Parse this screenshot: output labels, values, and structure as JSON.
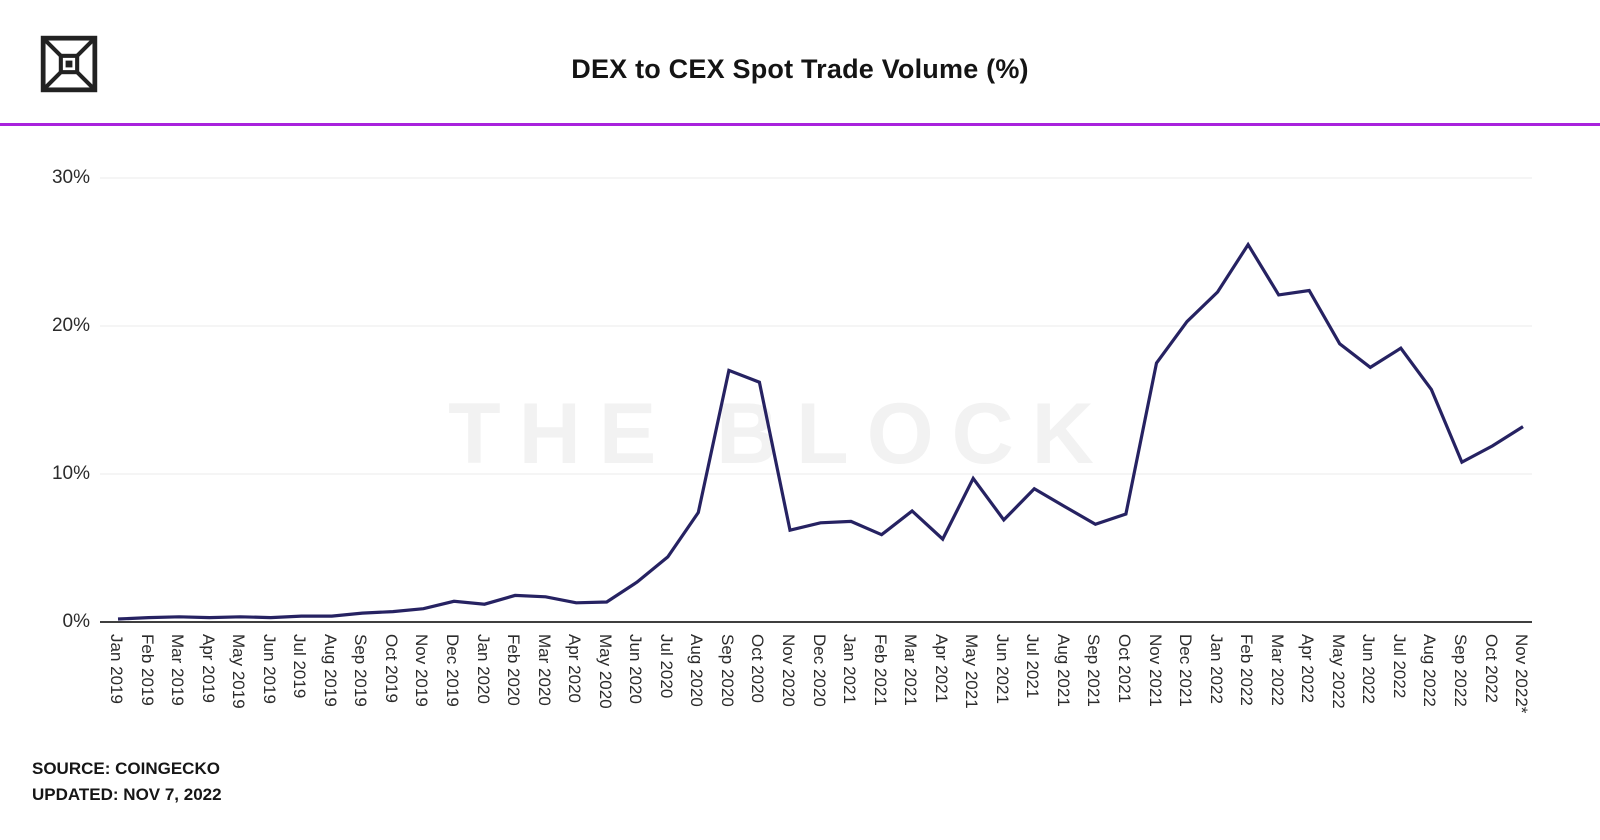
{
  "header": {
    "title": "DEX to CEX Spot Trade Volume (%)"
  },
  "watermark": "THE BLOCK",
  "footer": {
    "source_label": "SOURCE: COINGECKO",
    "updated_label": "UPDATED: NOV 7, 2022"
  },
  "colors": {
    "line": "#262262",
    "accent_divider": "#a922dd",
    "grid": "#ebebeb",
    "axis": "#3f3f3f",
    "watermark": "#f2f2f2"
  },
  "chart_data": {
    "type": "line",
    "title": "DEX to CEX Spot Trade Volume (%)",
    "source": "COINGECKO",
    "updated": "NOV 7, 2022",
    "legend": "none",
    "grid": "horizontal",
    "x_label_rotation_deg": 90,
    "ylim": [
      0,
      33
    ],
    "yticks": [
      0,
      10,
      20,
      30
    ],
    "ytick_labels": [
      "0%",
      "10%",
      "20%",
      "30%"
    ],
    "categories": [
      "Jan 2019",
      "Feb 2019",
      "Mar 2019",
      "Apr 2019",
      "May 2019",
      "Jun 2019",
      "Jul 2019",
      "Aug 2019",
      "Sep 2019",
      "Oct 2019",
      "Nov 2019",
      "Dec 2019",
      "Jan 2020",
      "Feb 2020",
      "Mar 2020",
      "Apr 2020",
      "May 2020",
      "Jun 2020",
      "Jul 2020",
      "Aug 2020",
      "Sep 2020",
      "Oct 2020",
      "Nov 2020",
      "Dec 2020",
      "Jan 2021",
      "Feb 2021",
      "Mar 2021",
      "Apr 2021",
      "May 2021",
      "Jun 2021",
      "Jul 2021",
      "Aug 2021",
      "Sep 2021",
      "Oct 2021",
      "Nov 2021",
      "Dec 2021",
      "Jan 2022",
      "Feb 2022",
      "Mar 2022",
      "Apr 2022",
      "May 2022",
      "Jun 2022",
      "Jul 2022",
      "Aug 2022",
      "Sep 2022",
      "Oct 2022",
      "Nov 2022*"
    ],
    "values": [
      0.2,
      0.3,
      0.35,
      0.3,
      0.35,
      0.3,
      0.4,
      0.4,
      0.6,
      0.7,
      0.9,
      1.4,
      1.2,
      1.8,
      1.7,
      1.3,
      1.35,
      2.7,
      4.4,
      7.4,
      17.0,
      16.2,
      6.2,
      6.7,
      6.8,
      5.9,
      7.5,
      5.6,
      9.7,
      6.9,
      9.0,
      7.8,
      6.6,
      7.3,
      17.5,
      20.3,
      22.3,
      25.5,
      22.1,
      22.4,
      18.8,
      17.2,
      18.5,
      15.7,
      10.8,
      11.9,
      13.2
    ]
  }
}
